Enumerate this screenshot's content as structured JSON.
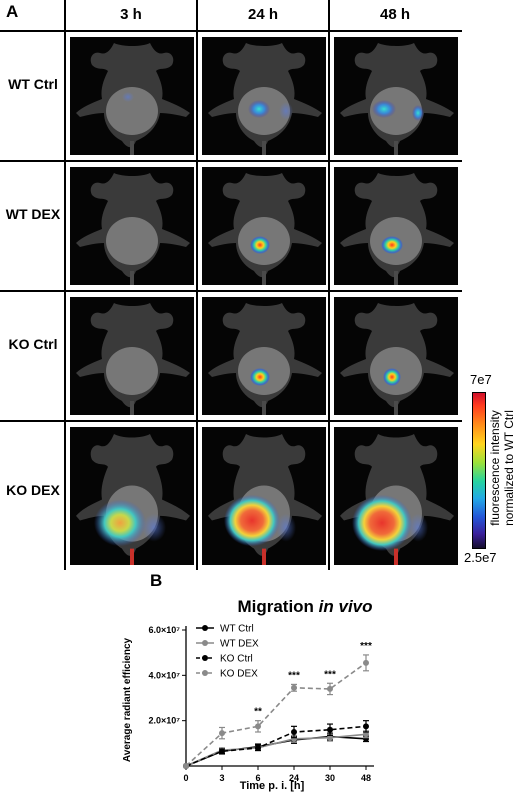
{
  "panelA": {
    "label": "A",
    "columns": [
      "3 h",
      "24 h",
      "48 h"
    ],
    "rows": [
      "WT Ctrl",
      "WT DEX",
      "KO Ctrl",
      "KO DEX"
    ],
    "colorbar": {
      "max_label": "7e7",
      "min_label": "2.5e7",
      "title_line1": "fluorescence intensity",
      "title_line2": "normalized to WT Ctrl"
    }
  },
  "panelB": {
    "label": "B"
  },
  "chart_data": {
    "type": "line",
    "title_plain": "Migration ",
    "title_italic": "in vivo",
    "xlabel": "Time p. i. [h]",
    "ylabel": "Average radiant efficiency",
    "x": [
      0,
      3,
      6,
      24,
      30,
      48
    ],
    "x_ticks": [
      "0",
      "3",
      "6",
      "24",
      "30",
      "48"
    ],
    "y_ticks": [
      "2.0×10⁷",
      "4.0×10⁷",
      "6.0×10⁷"
    ],
    "y_tick_values": [
      20000000,
      40000000,
      60000000
    ],
    "ylim": [
      0,
      60000000
    ],
    "significance": [
      "",
      "",
      "**",
      "***",
      "***",
      "***"
    ],
    "series": [
      {
        "name": "WT Ctrl",
        "color": "#000000",
        "dashed": false,
        "values": [
          0,
          6500000,
          8500000,
          11500000,
          13000000,
          12000000
        ],
        "errors": [
          0,
          1200000,
          1200000,
          1500000,
          1500000,
          1200000
        ]
      },
      {
        "name": "WT DEX",
        "color": "#8a8a8a",
        "dashed": false,
        "values": [
          0,
          7000000,
          8000000,
          12000000,
          12500000,
          14000000
        ],
        "errors": [
          0,
          1000000,
          1000000,
          1500000,
          1500000,
          1500000
        ]
      },
      {
        "name": "KO Ctrl",
        "color": "#000000",
        "dashed": true,
        "values": [
          0,
          6500000,
          8000000,
          15000000,
          16000000,
          17500000
        ],
        "errors": [
          0,
          1000000,
          1200000,
          2500000,
          2500000,
          2500000
        ]
      },
      {
        "name": "KO DEX",
        "color": "#8a8a8a",
        "dashed": true,
        "values": [
          0,
          14500000,
          17500000,
          34500000,
          34000000,
          45500000
        ],
        "errors": [
          0,
          2500000,
          2500000,
          1500000,
          2500000,
          3500000
        ]
      }
    ]
  }
}
